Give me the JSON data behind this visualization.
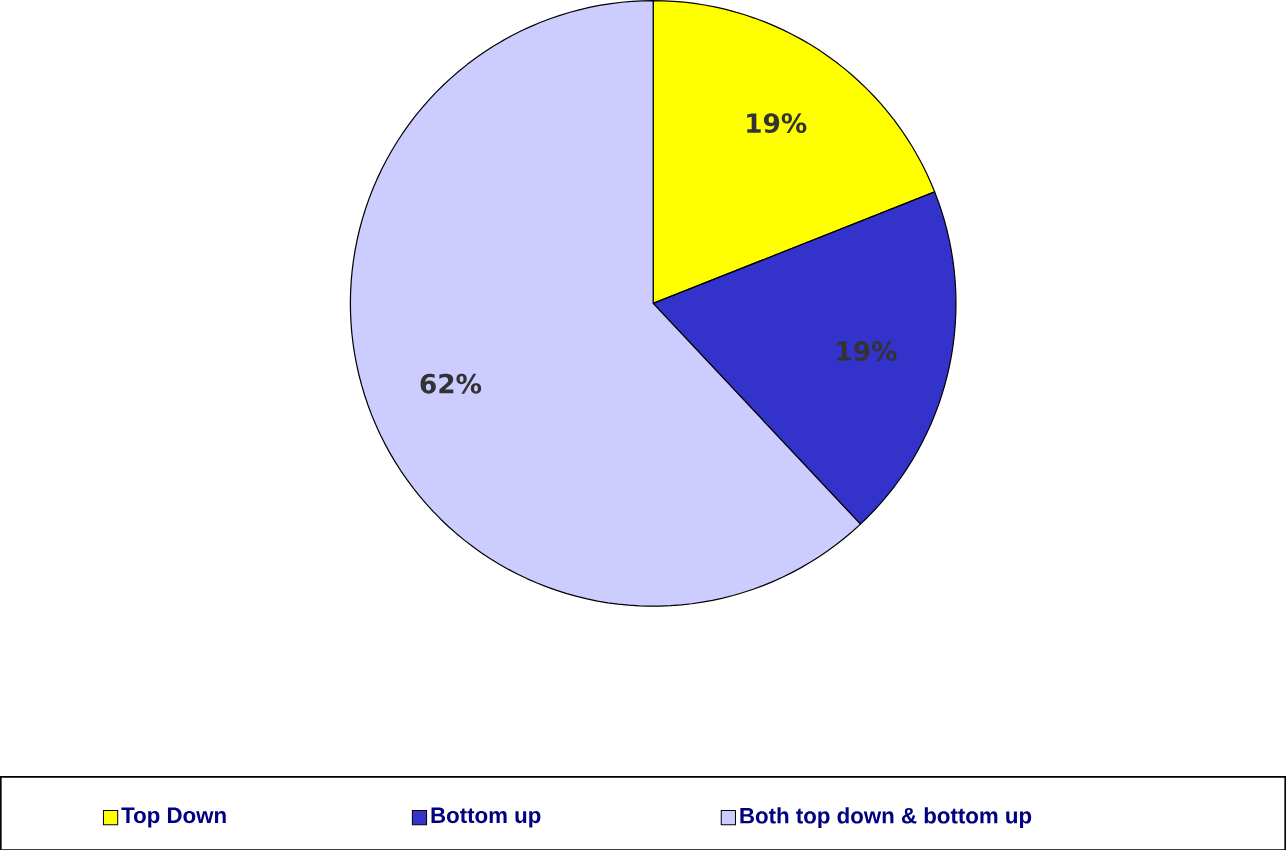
{
  "chart_data": {
    "type": "pie",
    "categories": [
      "Top Down",
      "Bottom up",
      "Both top down & bottom up"
    ],
    "values": [
      19,
      19,
      62
    ],
    "colors": [
      "#ffff00",
      "#3333cc",
      "#ccccff"
    ],
    "value_labels": [
      "19%",
      "19%",
      "62%"
    ],
    "legend": "bottom"
  }
}
